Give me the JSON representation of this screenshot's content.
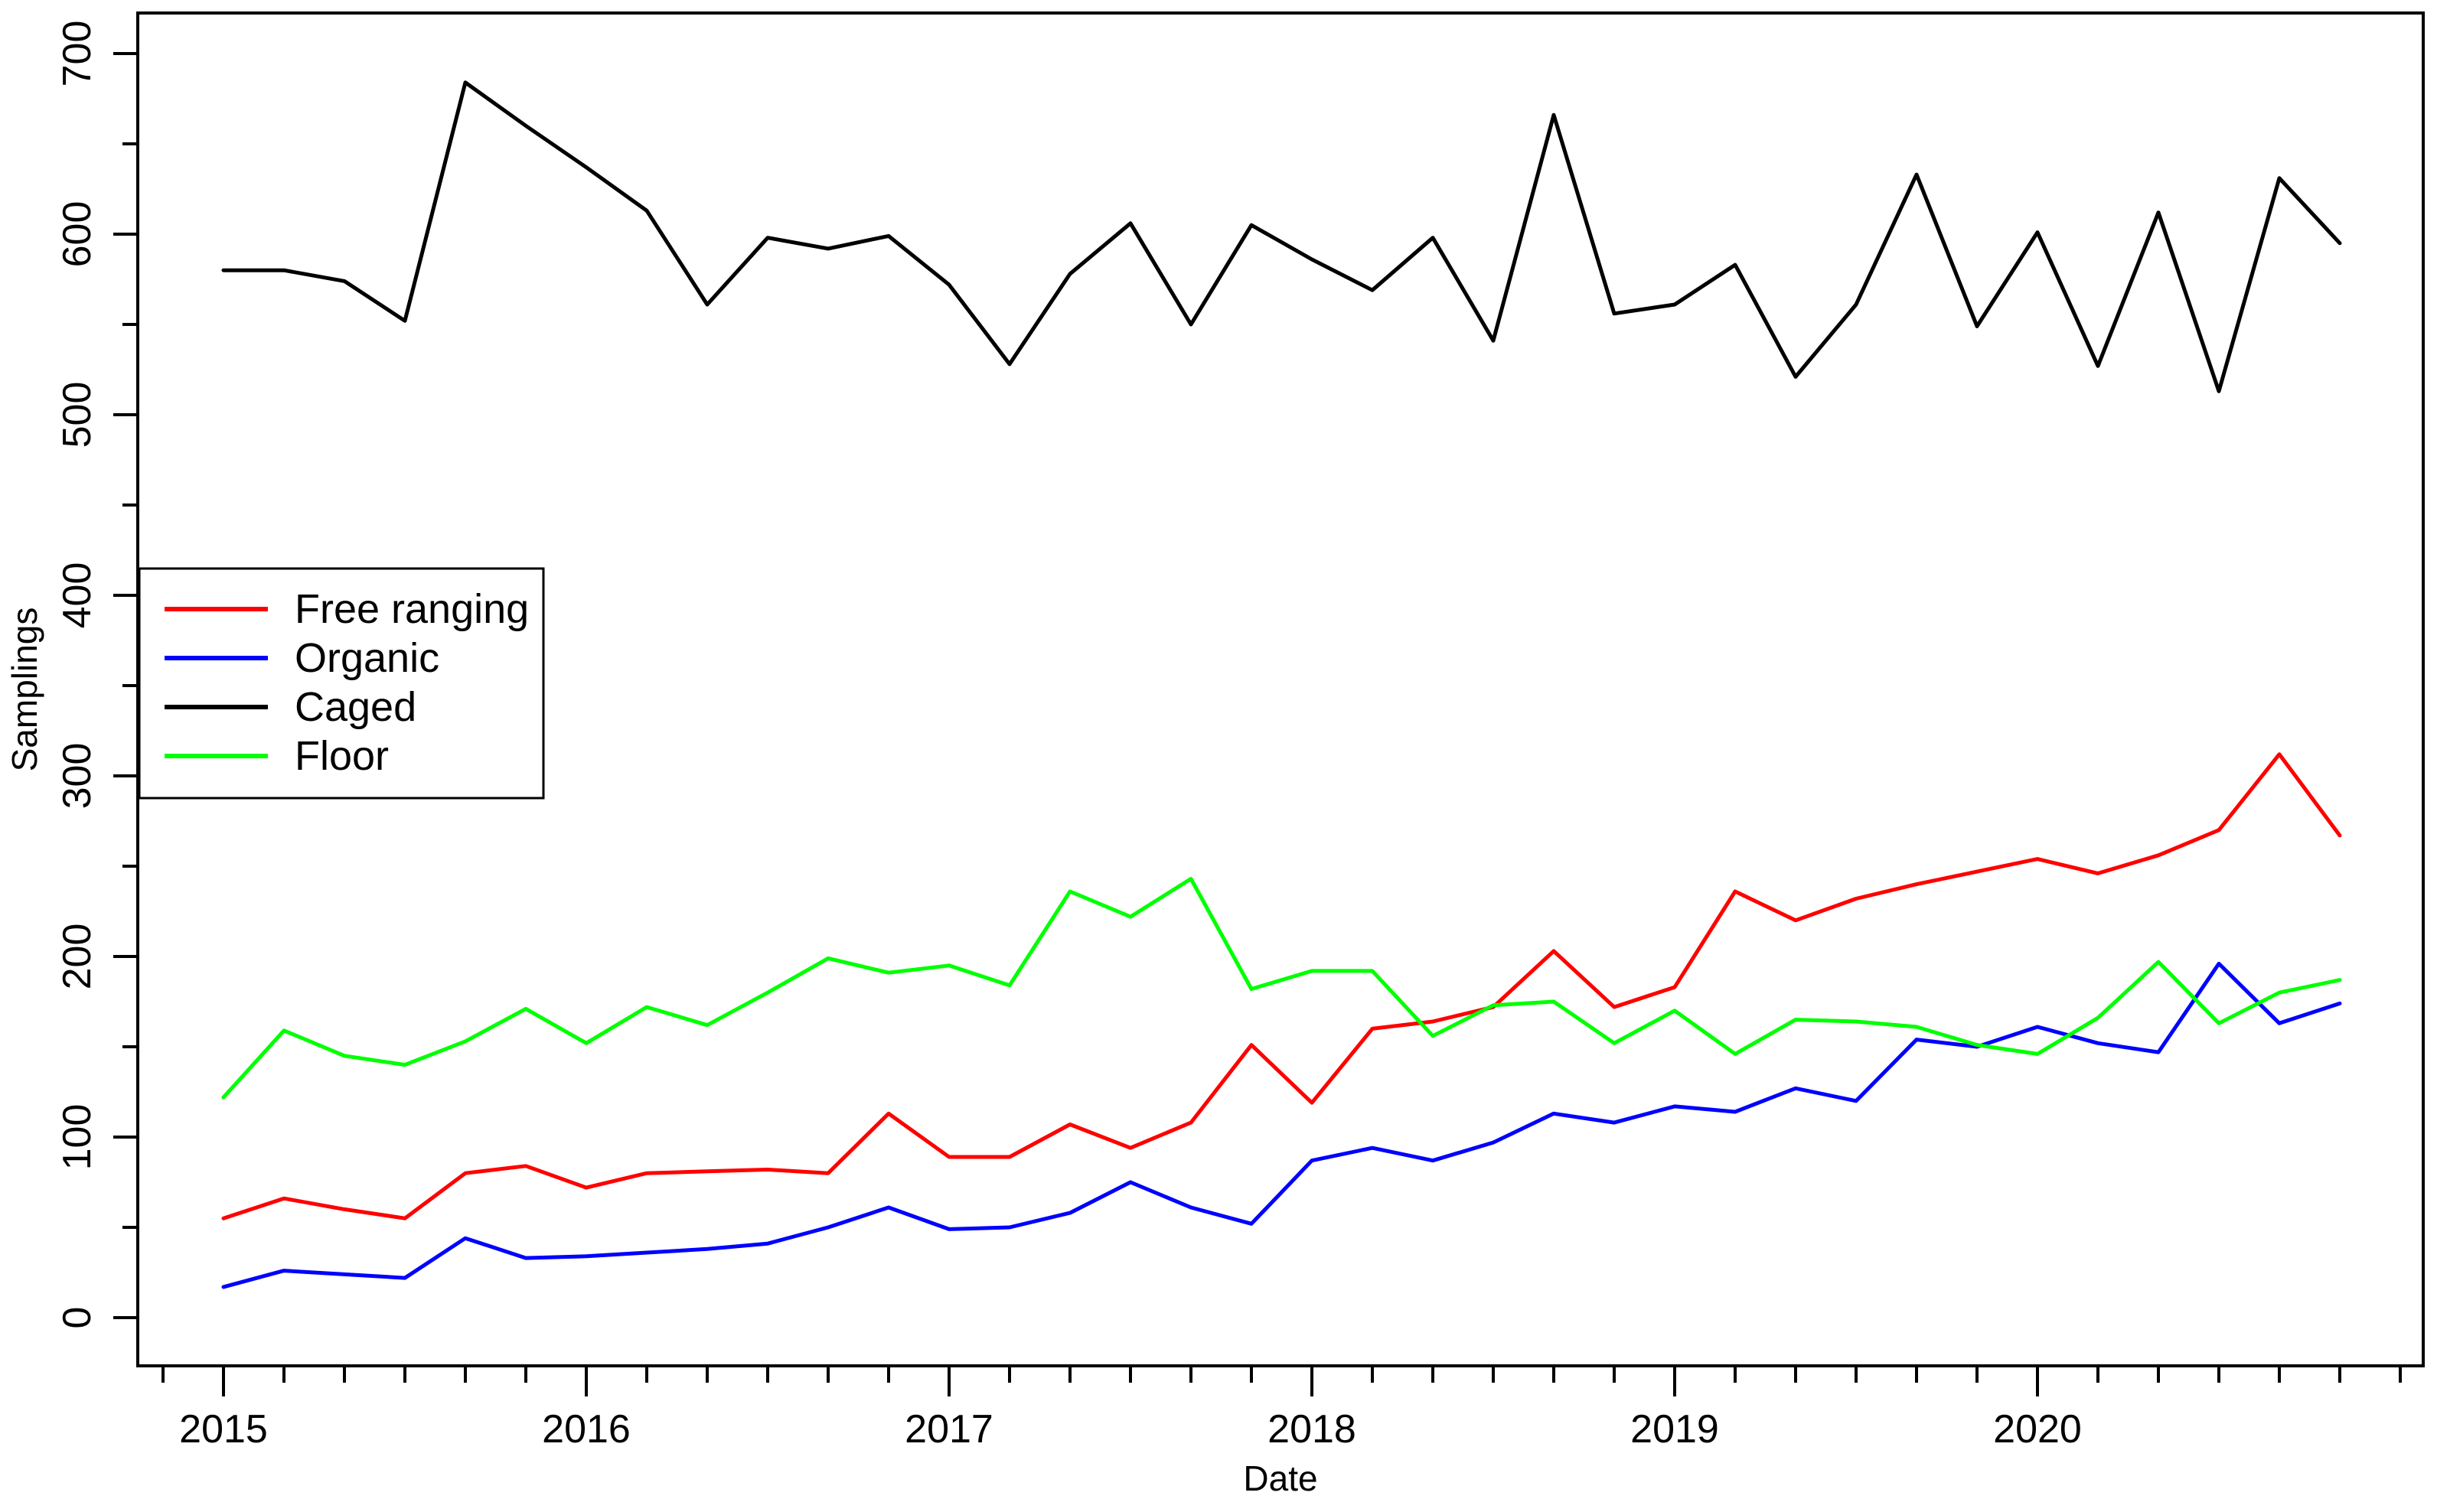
{
  "chart_data": {
    "type": "line",
    "title": "",
    "xlabel": "Date",
    "ylabel": "Samplings",
    "ylim": [
      0,
      700
    ],
    "ytick_label_step": 100,
    "ytick_minor_step": 50,
    "xtick_years": [
      "2015",
      "2016",
      "2017",
      "2018",
      "2019",
      "2020"
    ],
    "grid": false,
    "legend_position": "upper-left",
    "x": [
      "Jan 2015",
      "Mar 2015",
      "May 2015",
      "Jul 2015",
      "Sep 2015",
      "Nov 2015",
      "Jan 2016",
      "Mar 2016",
      "May 2016",
      "Jul 2016",
      "Sep 2016",
      "Nov 2016",
      "Jan 2017",
      "Mar 2017",
      "May 2017",
      "Jul 2017",
      "Sep 2017",
      "Nov 2017",
      "Jan 2018",
      "Mar 2018",
      "May 2018",
      "Jul 2018",
      "Sep 2018",
      "Nov 2018",
      "Jan 2019",
      "Mar 2019",
      "May 2019",
      "Jul 2019",
      "Sep 2019",
      "Nov 2019",
      "Jan 2020",
      "Mar 2020",
      "May 2020",
      "Jul 2020",
      "Sep 2020",
      "Nov 2020"
    ],
    "series": [
      {
        "name": "Free ranging",
        "color": "#FF0000",
        "values": [
          55,
          66,
          60,
          55,
          80,
          84,
          72,
          80,
          81,
          82,
          80,
          113,
          89,
          89,
          107,
          94,
          108,
          151,
          119,
          160,
          164,
          172,
          203,
          172,
          183,
          236,
          220,
          232,
          240,
          247,
          254,
          246,
          256,
          270,
          312,
          267
        ]
      },
      {
        "name": "Organic",
        "color": "#0000FF",
        "values": [
          17,
          26,
          24,
          22,
          44,
          33,
          34,
          36,
          38,
          41,
          50,
          61,
          49,
          50,
          58,
          75,
          61,
          52,
          87,
          94,
          87,
          97,
          113,
          108,
          117,
          114,
          127,
          120,
          154,
          150,
          161,
          152,
          147,
          196,
          163,
          174
        ]
      },
      {
        "name": "Caged",
        "color": "#000000",
        "values": [
          580,
          580,
          574,
          552,
          684,
          660,
          637,
          613,
          561,
          598,
          592,
          599,
          572,
          528,
          578,
          606,
          550,
          605,
          586,
          569,
          598,
          541,
          666,
          556,
          561,
          583,
          521,
          561,
          633,
          549,
          601,
          527,
          612,
          513,
          631,
          595
        ]
      },
      {
        "name": "Floor",
        "color": "#00FF00",
        "values": [
          122,
          159,
          145,
          140,
          153,
          171,
          152,
          172,
          162,
          180,
          199,
          191,
          195,
          184,
          236,
          222,
          243,
          182,
          192,
          192,
          156,
          173,
          175,
          152,
          170,
          146,
          165,
          164,
          161,
          151,
          146,
          166,
          197,
          163,
          180,
          187
        ]
      }
    ]
  }
}
